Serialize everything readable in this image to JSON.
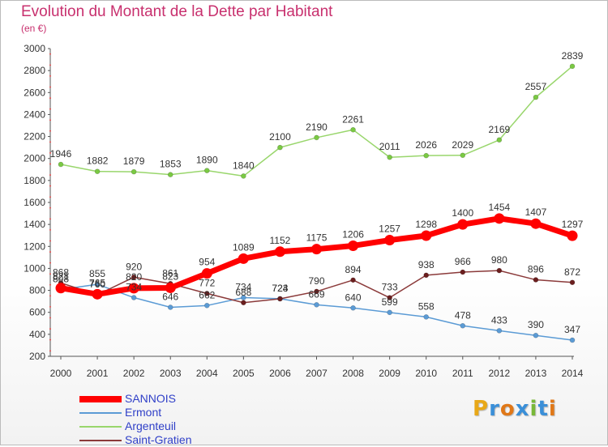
{
  "title": "Evolution du Montant de la Dette par Habitant",
  "subtitle": "(en €)",
  "logo": {
    "letters": [
      "P",
      "r",
      "o",
      "x",
      "i",
      "t",
      "i"
    ],
    "colors": [
      "#e8a818",
      "#3a8fd8",
      "#e07818",
      "#3a8fd8",
      "#78b838",
      "#3a8fd8",
      "#e07818"
    ]
  },
  "chart_data": {
    "type": "line",
    "title": "Evolution du Montant de la Dette par Habitant",
    "subtitle": "(en €)",
    "x": [
      "2000",
      "2001",
      "2002",
      "2003",
      "2004",
      "2005",
      "2006",
      "2007",
      "2008",
      "2009",
      "2010",
      "2011",
      "2012",
      "2013",
      "2014"
    ],
    "ylim": [
      200,
      3000
    ],
    "yticks": [
      200,
      400,
      600,
      800,
      1000,
      1200,
      1400,
      1600,
      1800,
      2000,
      2200,
      2400,
      2600,
      2800,
      3000
    ],
    "grid": false,
    "legend_position": "bottom-left",
    "series": [
      {
        "name": "SANNOIS",
        "color": "#ff0000",
        "point_color": "#ff0000",
        "values": [
          821,
          765,
          820,
          823,
          954,
          1089,
          1152,
          1175,
          1206,
          1257,
          1298,
          1400,
          1454,
          1407,
          1297
        ]
      },
      {
        "name": "Ermont",
        "color": "#5b9bd5",
        "point_color": "#5b9bd5",
        "values": [
          808,
          855,
          734,
          646,
          662,
          734,
          724,
          669,
          640,
          599,
          558,
          478,
          433,
          390,
          347
        ]
      },
      {
        "name": "Argenteuil",
        "color": "#99d66c",
        "point_color": "#7ac943",
        "values": [
          1946,
          1882,
          1879,
          1853,
          1890,
          1840,
          2100,
          2190,
          2261,
          2011,
          2026,
          2029,
          2169,
          2557,
          2839
        ]
      },
      {
        "name": "Saint-Gratien",
        "color": "#8b3a3a",
        "point_color": "#6b1e1e",
        "values": [
          868,
          760,
          920,
          861,
          772,
          688,
          723,
          790,
          894,
          733,
          938,
          966,
          980,
          896,
          872
        ]
      }
    ]
  }
}
